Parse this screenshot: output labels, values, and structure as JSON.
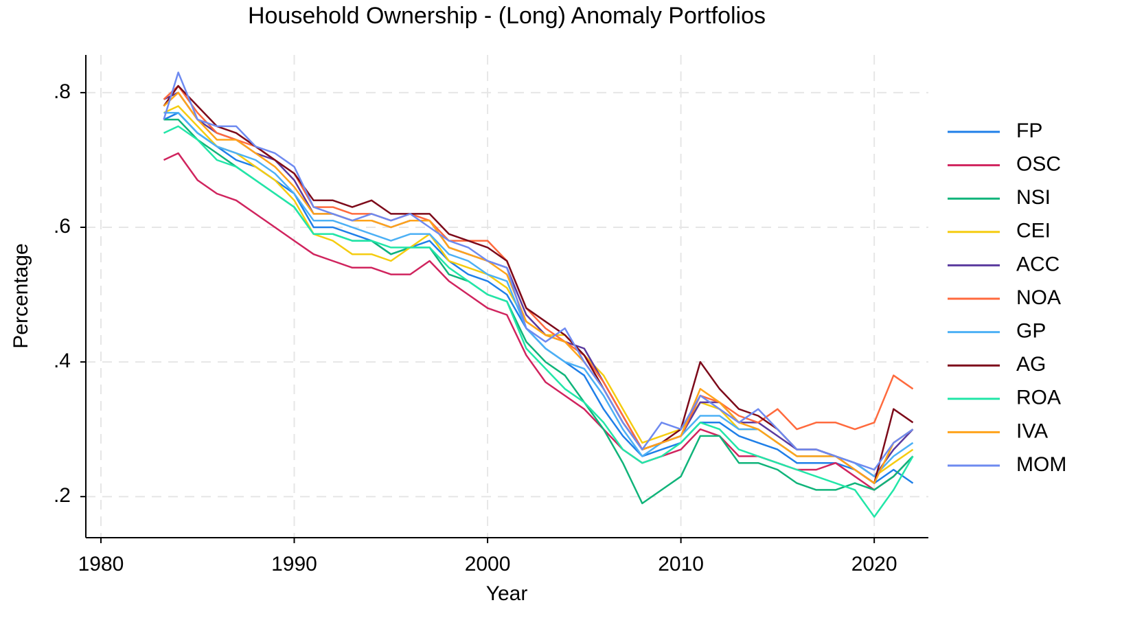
{
  "chart_data": {
    "type": "line",
    "title": "Household Ownership - (Long) Anomaly Portfolios",
    "x_label": "Year",
    "y_label": "Percentage",
    "x": [
      1983.25,
      1984,
      1985,
      1986,
      1987,
      1988,
      1989,
      1990,
      1991,
      1992,
      1993,
      1994,
      1995,
      1996,
      1997,
      1998,
      1999,
      2000,
      2001,
      2002,
      2003,
      2004,
      2005,
      2006,
      2007,
      2008,
      2009,
      2010,
      2011,
      2012,
      2013,
      2014,
      2015,
      2016,
      2017,
      2018,
      2019,
      2020,
      2021,
      2022
    ],
    "xlim": [
      1979.22,
      2022.8
    ],
    "xticks": [
      1980,
      1990,
      2000,
      2010,
      2020
    ],
    "ylim": [
      0.139,
      0.856
    ],
    "yticks": [
      {
        "value": 0.2,
        "label": ".2"
      },
      {
        "value": 0.4,
        "label": ".4"
      },
      {
        "value": 0.6,
        "label": ".6"
      },
      {
        "value": 0.8,
        "label": ".8"
      }
    ],
    "grid": true,
    "legend": "right",
    "series": [
      {
        "name": "FP",
        "color": "#1f7fe8",
        "values": [
          0.76,
          0.77,
          0.74,
          0.72,
          0.7,
          0.69,
          0.67,
          0.65,
          0.6,
          0.6,
          0.59,
          0.58,
          0.56,
          0.57,
          0.58,
          0.55,
          0.53,
          0.52,
          0.5,
          0.45,
          0.42,
          0.4,
          0.38,
          0.33,
          0.29,
          0.26,
          0.27,
          0.28,
          0.31,
          0.31,
          0.29,
          0.28,
          0.27,
          0.25,
          0.25,
          0.25,
          0.24,
          0.22,
          0.24,
          0.22
        ]
      },
      {
        "name": "OSC",
        "color": "#d0245e",
        "values": [
          0.7,
          0.71,
          0.67,
          0.65,
          0.64,
          0.62,
          0.6,
          0.58,
          0.56,
          0.55,
          0.54,
          0.54,
          0.53,
          0.53,
          0.55,
          0.52,
          0.5,
          0.48,
          0.47,
          0.41,
          0.37,
          0.35,
          0.33,
          0.3,
          0.27,
          0.25,
          0.26,
          0.27,
          0.3,
          0.29,
          0.26,
          0.26,
          0.25,
          0.24,
          0.24,
          0.25,
          0.23,
          0.21,
          0.23,
          0.26
        ]
      },
      {
        "name": "NSI",
        "color": "#10b47a",
        "values": [
          0.76,
          0.76,
          0.73,
          0.71,
          0.69,
          0.67,
          0.65,
          0.63,
          0.59,
          0.59,
          0.58,
          0.58,
          0.56,
          0.57,
          0.57,
          0.53,
          0.52,
          0.5,
          0.49,
          0.43,
          0.4,
          0.38,
          0.34,
          0.3,
          0.25,
          0.19,
          0.21,
          0.23,
          0.29,
          0.29,
          0.25,
          0.25,
          0.24,
          0.22,
          0.21,
          0.21,
          0.22,
          0.21,
          0.23,
          0.26
        ]
      },
      {
        "name": "CEI",
        "color": "#f5cc10",
        "values": [
          0.77,
          0.78,
          0.75,
          0.72,
          0.71,
          0.69,
          0.67,
          0.64,
          0.59,
          0.58,
          0.56,
          0.56,
          0.55,
          0.57,
          0.59,
          0.55,
          0.54,
          0.53,
          0.51,
          0.46,
          0.44,
          0.44,
          0.41,
          0.38,
          0.33,
          0.28,
          0.29,
          0.3,
          0.34,
          0.33,
          0.3,
          0.3,
          0.28,
          0.26,
          0.26,
          0.26,
          0.25,
          0.23,
          0.25,
          0.27
        ]
      },
      {
        "name": "ACC",
        "color": "#5a3a9e",
        "values": [
          0.79,
          0.8,
          0.76,
          0.74,
          0.73,
          0.71,
          0.7,
          0.67,
          0.62,
          0.62,
          0.61,
          0.61,
          0.6,
          0.61,
          0.61,
          0.57,
          0.56,
          0.55,
          0.54,
          0.47,
          0.44,
          0.43,
          0.42,
          0.37,
          0.32,
          0.27,
          0.28,
          0.29,
          0.34,
          0.34,
          0.31,
          0.31,
          0.29,
          0.27,
          0.27,
          0.26,
          0.25,
          0.23,
          0.27,
          0.3
        ]
      },
      {
        "name": "NOA",
        "color": "#ff6a3d",
        "values": [
          0.79,
          0.81,
          0.77,
          0.74,
          0.73,
          0.72,
          0.7,
          0.68,
          0.63,
          0.63,
          0.62,
          0.62,
          0.61,
          0.62,
          0.61,
          0.58,
          0.58,
          0.58,
          0.55,
          0.48,
          0.45,
          0.43,
          0.41,
          0.37,
          0.32,
          0.27,
          0.28,
          0.29,
          0.35,
          0.34,
          0.32,
          0.31,
          0.33,
          0.3,
          0.31,
          0.31,
          0.3,
          0.31,
          0.38,
          0.36
        ]
      },
      {
        "name": "GP",
        "color": "#4cb0f5",
        "values": [
          0.77,
          0.77,
          0.74,
          0.72,
          0.71,
          0.7,
          0.68,
          0.65,
          0.61,
          0.61,
          0.6,
          0.59,
          0.58,
          0.59,
          0.59,
          0.56,
          0.55,
          0.53,
          0.52,
          0.45,
          0.42,
          0.4,
          0.39,
          0.35,
          0.3,
          0.26,
          0.28,
          0.29,
          0.32,
          0.32,
          0.3,
          0.3,
          0.28,
          0.26,
          0.26,
          0.26,
          0.25,
          0.23,
          0.26,
          0.28
        ]
      },
      {
        "name": "AG",
        "color": "#7d0a1a",
        "values": [
          0.78,
          0.81,
          0.78,
          0.75,
          0.74,
          0.72,
          0.7,
          0.68,
          0.64,
          0.64,
          0.63,
          0.64,
          0.62,
          0.62,
          0.62,
          0.59,
          0.58,
          0.57,
          0.55,
          0.48,
          0.46,
          0.44,
          0.41,
          0.36,
          0.31,
          0.27,
          0.28,
          0.3,
          0.4,
          0.36,
          0.33,
          0.32,
          0.3,
          0.27,
          0.27,
          0.26,
          0.24,
          0.22,
          0.33,
          0.31
        ]
      },
      {
        "name": "ROA",
        "color": "#22e6a8",
        "values": [
          0.74,
          0.75,
          0.73,
          0.7,
          0.69,
          0.67,
          0.65,
          0.63,
          0.59,
          0.59,
          0.58,
          0.58,
          0.57,
          0.57,
          0.57,
          0.54,
          0.52,
          0.5,
          0.49,
          0.42,
          0.39,
          0.36,
          0.34,
          0.31,
          0.27,
          0.25,
          0.26,
          0.28,
          0.31,
          0.3,
          0.27,
          0.26,
          0.25,
          0.24,
          0.23,
          0.22,
          0.21,
          0.17,
          0.21,
          0.26
        ]
      },
      {
        "name": "IVA",
        "color": "#ffa31a",
        "values": [
          0.78,
          0.8,
          0.76,
          0.73,
          0.73,
          0.71,
          0.69,
          0.66,
          0.62,
          0.62,
          0.61,
          0.61,
          0.6,
          0.61,
          0.61,
          0.57,
          0.56,
          0.55,
          0.53,
          0.46,
          0.44,
          0.43,
          0.4,
          0.36,
          0.31,
          0.27,
          0.28,
          0.29,
          0.36,
          0.34,
          0.31,
          0.3,
          0.28,
          0.26,
          0.26,
          0.26,
          0.24,
          0.22,
          0.28,
          0.3
        ]
      },
      {
        "name": "MOM",
        "color": "#6e8af0",
        "values": [
          0.76,
          0.83,
          0.76,
          0.75,
          0.75,
          0.72,
          0.71,
          0.69,
          0.63,
          0.62,
          0.61,
          0.62,
          0.61,
          0.62,
          0.6,
          0.58,
          0.57,
          0.55,
          0.54,
          0.45,
          0.43,
          0.45,
          0.4,
          0.36,
          0.31,
          0.27,
          0.31,
          0.3,
          0.35,
          0.33,
          0.31,
          0.33,
          0.3,
          0.27,
          0.27,
          0.26,
          0.25,
          0.24,
          0.28,
          0.3
        ]
      }
    ]
  }
}
